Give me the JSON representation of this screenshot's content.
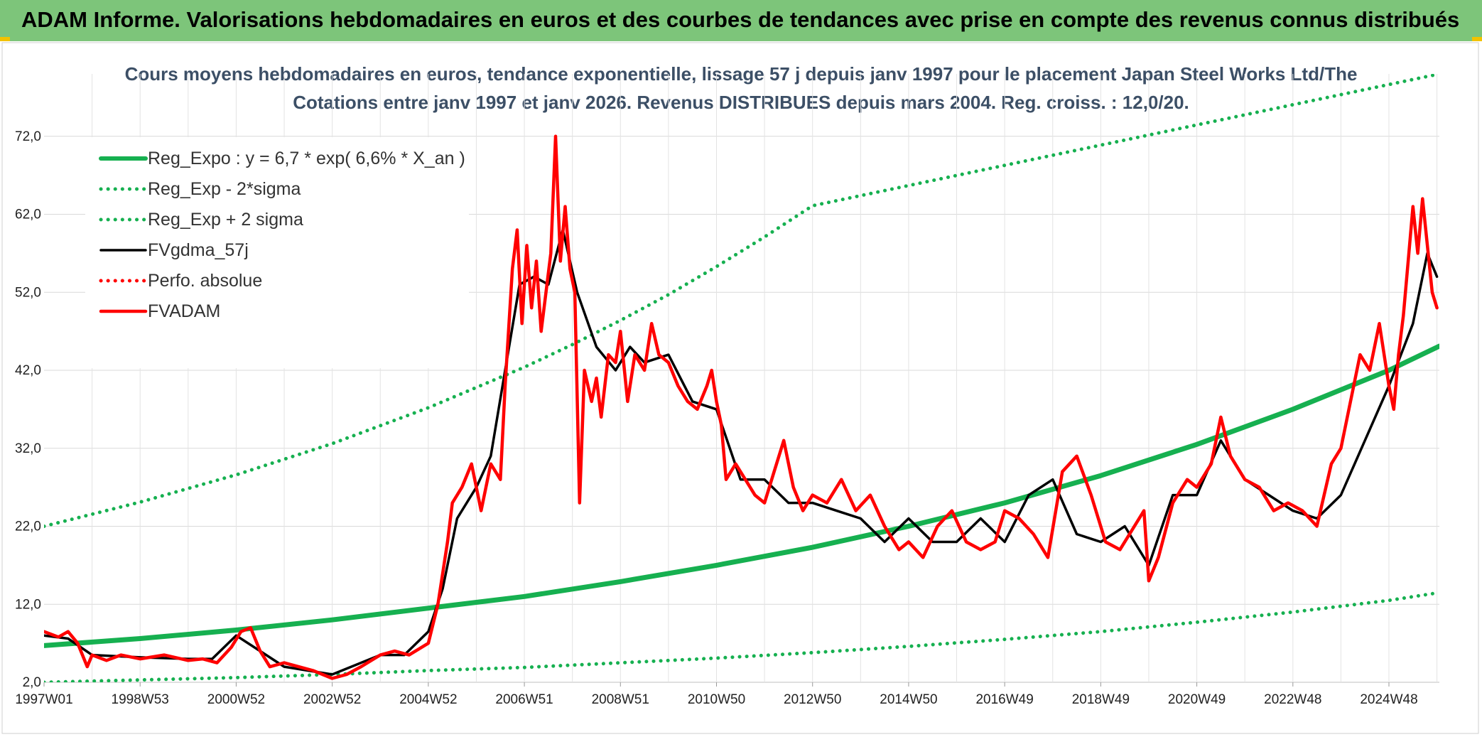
{
  "header": {
    "title": "ADAM Informe. Valorisations hebdomadaires en euros et des courbes de tendances avec prise en compte des revenus connus distribués"
  },
  "colors": {
    "banner": "#7dc57a",
    "reg_expo": "#16b050",
    "band": "#16b050",
    "smooth": "#000000",
    "price": "#ff0000"
  },
  "chart_data": {
    "type": "line",
    "title": "Cours moyens hebdomadaires en euros, tendance exponentielle, lissage 57 j depuis janv 1997 pour le placement Japan Steel Works Ltd/The",
    "subtitle": "Cotations entre janv 1997 et janv 2026. Revenus DISTRIBUES depuis mars 2004. Reg. croiss. : 12,0/20.",
    "xlabel": "",
    "ylabel": "",
    "ylim": [
      2,
      80
    ],
    "xlim": [
      1997.0,
      2026.05
    ],
    "y_ticks": [
      "72,0",
      "62,0",
      "52,0",
      "42,0",
      "32,0",
      "22,0",
      "12,0",
      "2,0"
    ],
    "y_tick_values": [
      72,
      62,
      52,
      42,
      32,
      22,
      12,
      2
    ],
    "x_ticks": [
      "1997W01",
      "1998W53",
      "2000W52",
      "2002W52",
      "2004W52",
      "2006W51",
      "2008W51",
      "2010W50",
      "2012W50",
      "2014W50",
      "2016W49",
      "2018W49",
      "2020W49",
      "2022W48",
      "2024W48"
    ],
    "x_tick_values": [
      1997.0,
      1999.0,
      2001.0,
      2003.0,
      2005.0,
      2007.0,
      2009.0,
      2011.0,
      2013.0,
      2015.0,
      2017.0,
      2019.0,
      2021.0,
      2023.0,
      2025.0
    ],
    "grid": true,
    "legend_placement": "top-left",
    "series": [
      {
        "name": "Reg_Expo : y = 6,7 * exp( 6,6% *  X_an )",
        "style": "solid",
        "color": "#16b050",
        "x": [
          1997.0,
          1999.0,
          2001.0,
          2003.0,
          2005.0,
          2007.0,
          2009.0,
          2011.0,
          2013.0,
          2015.0,
          2017.0,
          2019.0,
          2021.0,
          2023.0,
          2025.0,
          2026.05
        ],
        "y": [
          6.7,
          7.6,
          8.7,
          10.0,
          11.5,
          13.0,
          14.9,
          17.0,
          19.3,
          22.0,
          25.0,
          28.5,
          32.5,
          37.0,
          42.0,
          45.1
        ]
      },
      {
        "name": "Reg_Exp - 2*sigma",
        "style": "dotted",
        "color": "#16b050",
        "x": [
          1997.0,
          1999.0,
          2001.0,
          2003.0,
          2005.0,
          2007.0,
          2009.0,
          2011.0,
          2013.0,
          2015.0,
          2017.0,
          2019.0,
          2021.0,
          2023.0,
          2025.0,
          2026.05
        ],
        "y": [
          2.0,
          2.3,
          2.6,
          3.0,
          3.5,
          3.9,
          4.5,
          5.1,
          5.8,
          6.6,
          7.5,
          8.5,
          9.7,
          11.0,
          12.5,
          13.5
        ]
      },
      {
        "name": "Reg_Exp + 2 sigma",
        "style": "dotted",
        "color": "#16b050",
        "x": [
          1997.0,
          1999.0,
          2001.0,
          2003.0,
          2005.0,
          2007.0,
          2008.0,
          2009.0,
          2010.0,
          2011.0,
          2012.0,
          2013.0,
          2026.05
        ],
        "y": [
          22.0,
          25.1,
          28.6,
          32.6,
          37.2,
          42.4,
          45.3,
          48.4,
          51.7,
          55.3,
          59.1,
          63.1,
          80.0
        ]
      },
      {
        "name": "FVgdma_57j",
        "style": "solid",
        "color": "#000000",
        "x": [
          1997.0,
          1997.5,
          1998.0,
          1999.0,
          2000.0,
          2000.5,
          2001.0,
          2001.5,
          2002.0,
          2003.0,
          2004.0,
          2004.5,
          2005.0,
          2005.3,
          2005.6,
          2006.0,
          2006.3,
          2006.6,
          2006.9,
          2007.2,
          2007.5,
          2007.8,
          2008.1,
          2008.5,
          2008.9,
          2009.2,
          2009.5,
          2010.0,
          2010.5,
          2011.0,
          2011.5,
          2012.0,
          2012.5,
          2013.0,
          2013.5,
          2014.0,
          2014.5,
          2015.0,
          2015.5,
          2016.0,
          2016.5,
          2017.0,
          2017.5,
          2018.0,
          2018.5,
          2019.0,
          2019.5,
          2020.0,
          2020.5,
          2021.0,
          2021.5,
          2022.0,
          2022.5,
          2023.0,
          2023.5,
          2024.0,
          2024.5,
          2025.0,
          2025.5,
          2025.8,
          2026.0
        ],
        "y": [
          8.0,
          7.6,
          5.5,
          5.2,
          5.0,
          5.0,
          8.0,
          6.0,
          4.0,
          3.0,
          5.5,
          5.5,
          8.5,
          14.0,
          23.0,
          27.0,
          31.0,
          42.0,
          53.0,
          54.0,
          53.0,
          60.0,
          52.0,
          45.0,
          42.0,
          45.0,
          43.0,
          44.0,
          38.0,
          37.0,
          28.0,
          28.0,
          25.0,
          25.0,
          24.0,
          23.0,
          20.0,
          23.0,
          20.0,
          20.0,
          23.0,
          20.0,
          26.0,
          28.0,
          21.0,
          20.0,
          22.0,
          17.0,
          26.0,
          26.0,
          33.0,
          28.0,
          26.0,
          24.0,
          23.0,
          26.0,
          33.0,
          40.0,
          48.0,
          57.0,
          54.0
        ]
      },
      {
        "name": "Perfo. absolue",
        "style": "dotted",
        "color": "#ff0000",
        "x": [],
        "y": []
      },
      {
        "name": "FVADAM",
        "style": "solid",
        "color": "#ff0000",
        "x": [
          1997.0,
          1997.3,
          1997.5,
          1997.7,
          1997.9,
          1998.0,
          1998.3,
          1998.6,
          1999.0,
          1999.5,
          2000.0,
          2000.3,
          2000.6,
          2000.9,
          2001.1,
          2001.3,
          2001.5,
          2001.7,
          2002.0,
          2002.3,
          2002.6,
          2003.0,
          2003.3,
          2003.6,
          2004.0,
          2004.3,
          2004.6,
          2005.0,
          2005.2,
          2005.4,
          2005.5,
          2005.7,
          2005.9,
          2006.1,
          2006.3,
          2006.5,
          2006.6,
          2006.75,
          2006.85,
          2006.95,
          2007.05,
          2007.15,
          2007.25,
          2007.35,
          2007.45,
          2007.55,
          2007.65,
          2007.75,
          2007.85,
          2007.95,
          2008.05,
          2008.15,
          2008.25,
          2008.4,
          2008.5,
          2008.6,
          2008.75,
          2008.9,
          2009.0,
          2009.15,
          2009.3,
          2009.5,
          2009.65,
          2009.8,
          2010.0,
          2010.2,
          2010.4,
          2010.6,
          2010.8,
          2010.9,
          2011.0,
          2011.1,
          2011.2,
          2011.4,
          2011.6,
          2011.8,
          2012.0,
          2012.2,
          2012.4,
          2012.6,
          2012.8,
          2013.0,
          2013.3,
          2013.6,
          2013.9,
          2014.2,
          2014.5,
          2014.8,
          2015.0,
          2015.3,
          2015.6,
          2015.9,
          2016.2,
          2016.5,
          2016.8,
          2017.0,
          2017.3,
          2017.6,
          2017.9,
          2018.2,
          2018.5,
          2018.8,
          2019.1,
          2019.4,
          2019.7,
          2019.9,
          2020.0,
          2020.2,
          2020.5,
          2020.8,
          2021.0,
          2021.3,
          2021.5,
          2021.7,
          2022.0,
          2022.3,
          2022.6,
          2022.9,
          2023.2,
          2023.5,
          2023.8,
          2024.0,
          2024.2,
          2024.4,
          2024.6,
          2024.8,
          2025.0,
          2025.1,
          2025.2,
          2025.3,
          2025.4,
          2025.5,
          2025.6,
          2025.7,
          2025.8,
          2025.9,
          2026.0
        ],
        "y": [
          8.5,
          7.8,
          8.5,
          7.0,
          4.0,
          5.5,
          4.8,
          5.5,
          5.0,
          5.5,
          4.8,
          5.0,
          4.5,
          6.5,
          8.5,
          9.0,
          6.0,
          4.0,
          4.5,
          4.0,
          3.5,
          2.5,
          3.0,
          4.0,
          5.5,
          6.0,
          5.5,
          7.0,
          12.0,
          20.0,
          25.0,
          27.0,
          30.0,
          24.0,
          30.0,
          28.0,
          40.0,
          55.0,
          60.0,
          48.0,
          58.0,
          50.0,
          56.0,
          47.0,
          52.0,
          57.0,
          72.0,
          56.0,
          63.0,
          55.0,
          52.0,
          25.0,
          42.0,
          38.0,
          41.0,
          36.0,
          44.0,
          43.0,
          47.0,
          38.0,
          44.0,
          42.0,
          48.0,
          44.0,
          43.0,
          40.0,
          38.0,
          37.0,
          40.0,
          42.0,
          38.0,
          35.0,
          28.0,
          30.0,
          28.0,
          26.0,
          25.0,
          29.0,
          33.0,
          27.0,
          24.0,
          26.0,
          25.0,
          28.0,
          24.0,
          26.0,
          22.0,
          19.0,
          20.0,
          18.0,
          22.0,
          24.0,
          20.0,
          19.0,
          20.0,
          24.0,
          23.0,
          21.0,
          18.0,
          29.0,
          31.0,
          26.0,
          20.0,
          19.0,
          22.0,
          24.0,
          15.0,
          18.0,
          25.0,
          28.0,
          27.0,
          30.0,
          36.0,
          31.0,
          28.0,
          27.0,
          24.0,
          25.0,
          24.0,
          22.0,
          30.0,
          32.0,
          38.0,
          44.0,
          42.0,
          48.0,
          40.0,
          37.0,
          44.0,
          49.0,
          56.0,
          63.0,
          57.0,
          64.0,
          58.0,
          52.0,
          50.0
        ]
      }
    ]
  }
}
